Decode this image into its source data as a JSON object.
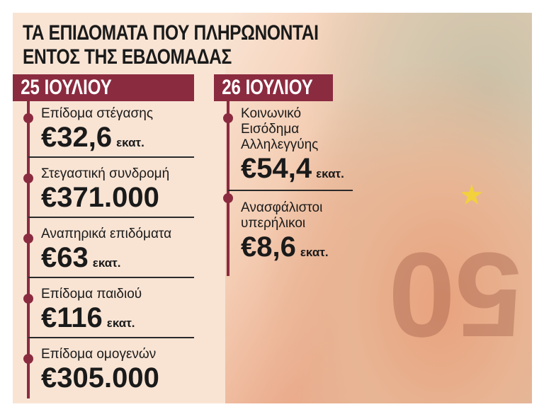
{
  "title_line1": "ΤΑ ΕΠΙΔΟΜΑΤΑ ΠΟΥ ΠΛΗΡΩΝΟΝΤΑΙ",
  "title_line2": "ΕΝΤΟΣ ΤΗΣ ΕΒΔΟΜΑΔΑΣ",
  "accent_color": "#8b2b40",
  "columns": [
    {
      "date": "25 ΙΟΥΛΙΟΥ",
      "items": [
        {
          "label": "Επίδομα στέγασης",
          "amount": "€32,6",
          "unit": "εκατ."
        },
        {
          "label": "Στεγαστική συνδρομή",
          "amount": "€371.000",
          "unit": ""
        },
        {
          "label": "Αναπηρικά επιδόματα",
          "amount": "€63",
          "unit": "εκατ."
        },
        {
          "label": "Επίδομα παιδιού",
          "amount": "€116",
          "unit": "εκατ."
        },
        {
          "label": "Επίδομα ομογενών",
          "amount": "€305.000",
          "unit": ""
        }
      ]
    },
    {
      "date": "26 ΙΟΥΛΙΟΥ",
      "items": [
        {
          "label": "Κοινωνικό Εισόδημα Αλληλεγγύης",
          "amount": "€54,4",
          "unit": "εκατ."
        },
        {
          "label": "Ανασφάλιστοι υπερήλικοι",
          "amount": "€8,6",
          "unit": "εκατ."
        }
      ]
    }
  ],
  "photo": {
    "banknote_text": "50"
  }
}
